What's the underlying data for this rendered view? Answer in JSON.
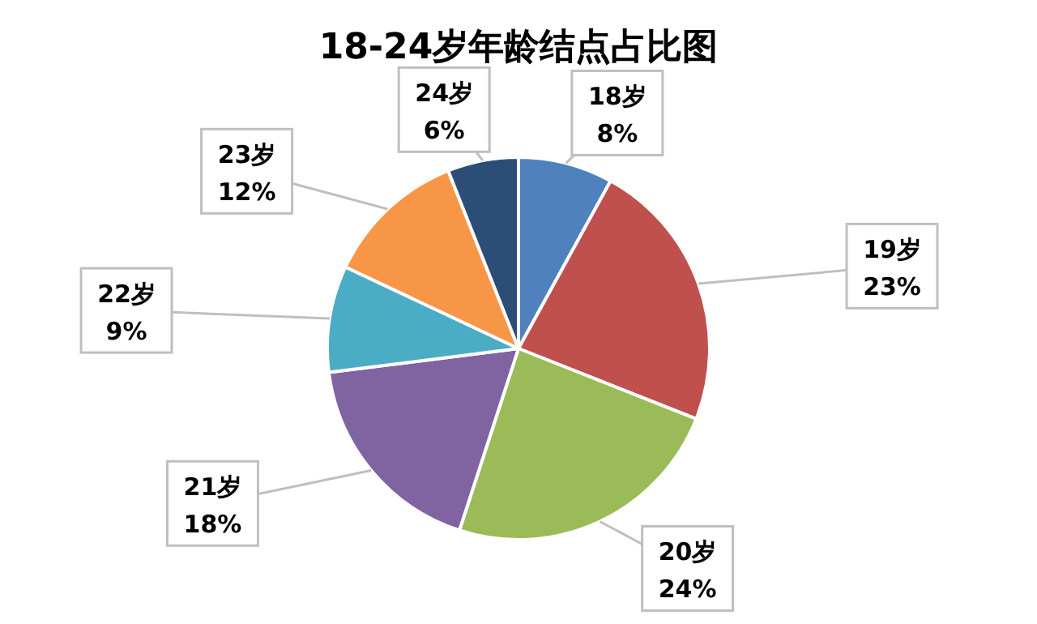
{
  "chart_data": {
    "type": "pie",
    "title": "18-24岁年龄结点占比图",
    "categories": [
      "18岁",
      "19岁",
      "20岁",
      "21岁",
      "22岁",
      "23岁",
      "24岁"
    ],
    "values": [
      8,
      23,
      24,
      18,
      9,
      12,
      6
    ],
    "colors": [
      "#4f81bd",
      "#c0504d",
      "#9bbb59",
      "#8064a2",
      "#4bacc6",
      "#f79646",
      "#2c4d75"
    ],
    "value_labels": [
      "8%",
      "23%",
      "24%",
      "18%",
      "9%",
      "12%",
      "6%"
    ]
  }
}
